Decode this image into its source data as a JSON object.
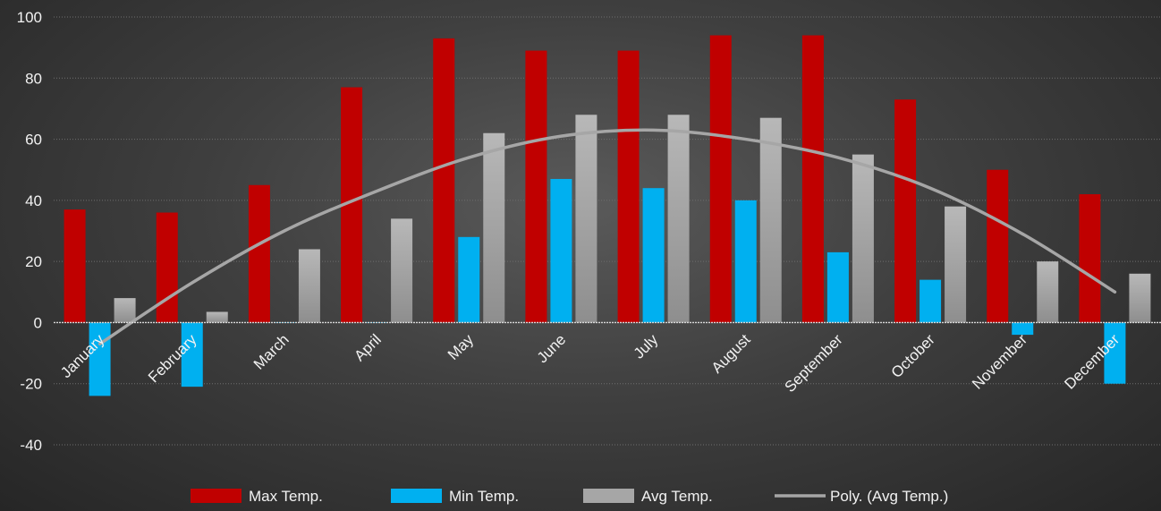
{
  "chart_data": {
    "type": "bar",
    "title": "",
    "xlabel": "",
    "ylabel": "",
    "ylim": [
      -40,
      100
    ],
    "yticks": [
      -40,
      -20,
      0,
      20,
      40,
      60,
      80,
      100
    ],
    "categories": [
      "January",
      "February",
      "March",
      "April",
      "May",
      "June",
      "July",
      "August",
      "September",
      "October",
      "November",
      "December"
    ],
    "series": [
      {
        "name": "Max Temp.",
        "color": "#c00000",
        "values": [
          37,
          36,
          45,
          77,
          93,
          89,
          89,
          94,
          94,
          73,
          50,
          42
        ]
      },
      {
        "name": "Min Temp.",
        "color": "#00b0f0",
        "values": [
          -24,
          -21,
          0,
          0,
          28,
          47,
          44,
          40,
          23,
          14,
          -4,
          -20
        ]
      },
      {
        "name": "Avg Temp.",
        "color": "#a6a6a6",
        "values": [
          8,
          3.5,
          24,
          34,
          62,
          68,
          68,
          67,
          55,
          38,
          20,
          16
        ]
      }
    ],
    "trendline": {
      "name": "Poly. (Avg Temp.)",
      "of_series": "Avg Temp.",
      "type": "polynomial",
      "color": "#a6a6a6",
      "values": [
        -7,
        13,
        30,
        43,
        54,
        61,
        63,
        60,
        54,
        44,
        29,
        10
      ]
    },
    "grid": true,
    "legend_position": "bottom"
  }
}
